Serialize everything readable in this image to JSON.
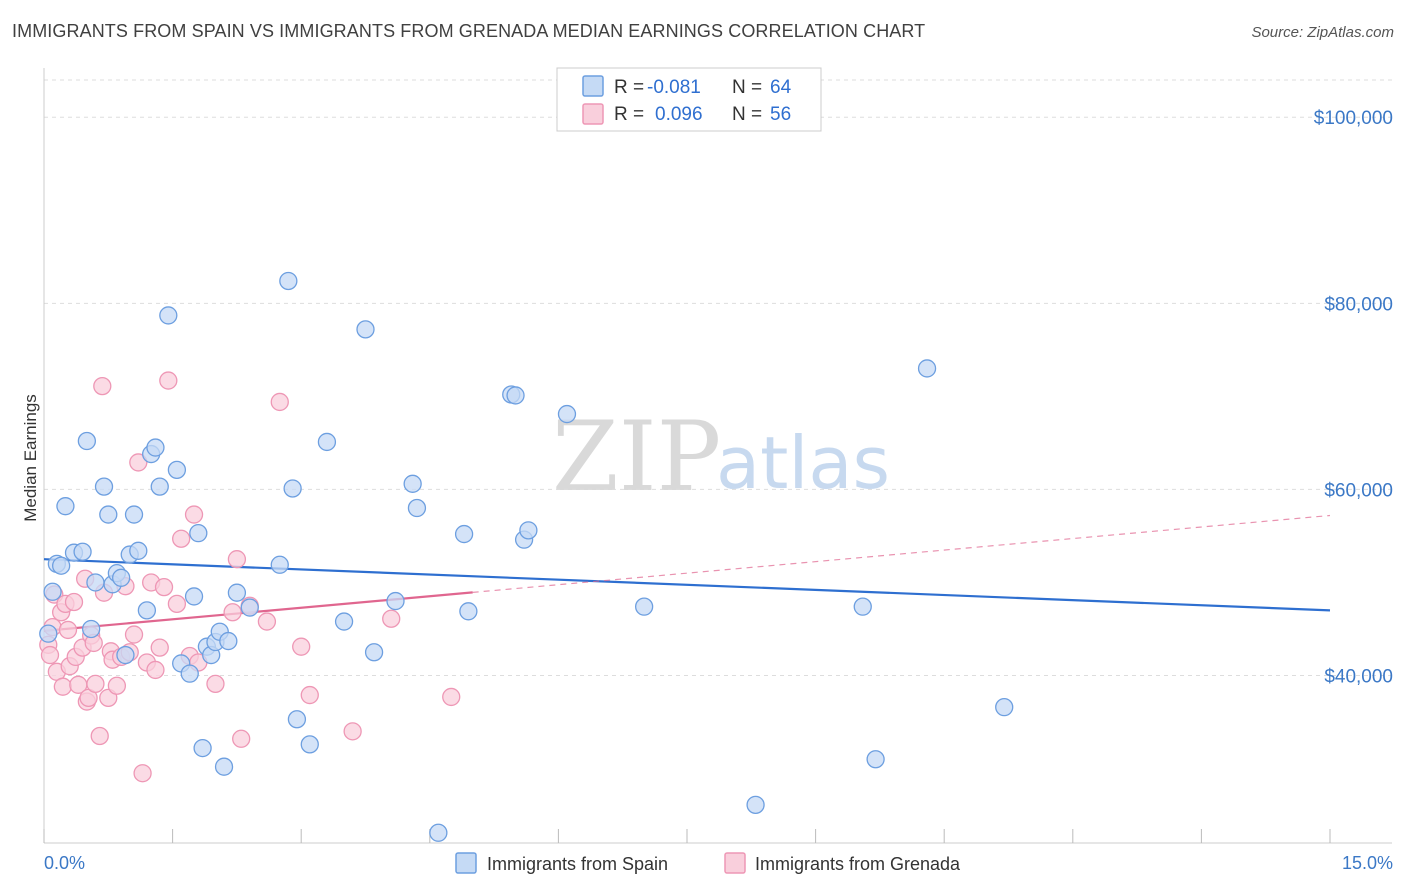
{
  "header": {
    "title": "IMMIGRANTS FROM SPAIN VS IMMIGRANTS FROM GRENADA MEDIAN EARNINGS CORRELATION CHART",
    "source": "Source: ZipAtlas.com"
  },
  "watermark": {
    "zip": "ZIP",
    "atlas": "atlas"
  },
  "legend_top": [
    {
      "r_label": "R = ",
      "r_value": "-0.081",
      "n_label": "N = ",
      "n_value": "64",
      "color": "#7aaae8"
    },
    {
      "r_label": "R = ",
      "r_value": "0.096",
      "n_label": "N = ",
      "n_value": "56",
      "color": "#f0a0bb"
    }
  ],
  "legend_bottom": [
    {
      "label": "Immigrants from Spain",
      "color": "#7aaae8"
    },
    {
      "label": "Immigrants from Grenada",
      "color": "#f0a0bb"
    }
  ],
  "colors": {
    "spain_fill": "#c5daf5",
    "spain_stroke": "#6d9fe0",
    "spain_line": "#2e6fd0",
    "grenada_fill": "#f9cfdc",
    "grenada_stroke": "#ee97b5",
    "grenada_line": "#e0668f",
    "grid": "#dddddd",
    "axis_label": "#3b78c6"
  },
  "chart_data": {
    "type": "scatter",
    "title": "IMMIGRANTS FROM SPAIN VS IMMIGRANTS FROM GRENADA MEDIAN EARNINGS CORRELATION CHART",
    "xlabel": "",
    "ylabel": "Median Earnings",
    "xlim": [
      0,
      15
    ],
    "ylim": [
      22000,
      104000
    ],
    "x_tick_labels": [
      {
        "value": 0,
        "label": "0.0%"
      },
      {
        "value": 15,
        "label": "15.0%"
      }
    ],
    "y_ticks": [
      {
        "value": 40000,
        "label": "$40,000"
      },
      {
        "value": 60000,
        "label": "$60,000"
      },
      {
        "value": 80000,
        "label": "$80,000"
      },
      {
        "value": 100000,
        "label": "$100,000"
      }
    ],
    "series": [
      {
        "name": "Immigrants from Spain",
        "r": -0.081,
        "n": 64,
        "trend": {
          "x": [
            0,
            15
          ],
          "y": [
            52500,
            47000
          ],
          "dashed_after": null
        },
        "points": [
          [
            0.05,
            44500
          ],
          [
            0.1,
            49000
          ],
          [
            0.15,
            52000
          ],
          [
            0.2,
            51800
          ],
          [
            0.25,
            58200
          ],
          [
            0.35,
            53200
          ],
          [
            0.45,
            53300
          ],
          [
            0.5,
            65200
          ],
          [
            0.55,
            45000
          ],
          [
            0.6,
            50000
          ],
          [
            0.7,
            60300
          ],
          [
            0.75,
            57300
          ],
          [
            0.8,
            49800
          ],
          [
            0.85,
            51000
          ],
          [
            0.9,
            50500
          ],
          [
            0.95,
            42200
          ],
          [
            1.0,
            53000
          ],
          [
            1.05,
            57300
          ],
          [
            1.1,
            53400
          ],
          [
            1.2,
            47000
          ],
          [
            1.25,
            63800
          ],
          [
            1.3,
            64500
          ],
          [
            1.35,
            60300
          ],
          [
            1.45,
            78700
          ],
          [
            1.55,
            62100
          ],
          [
            1.6,
            41300
          ],
          [
            1.7,
            40200
          ],
          [
            1.75,
            48500
          ],
          [
            1.8,
            55300
          ],
          [
            1.85,
            32200
          ],
          [
            1.9,
            43100
          ],
          [
            1.95,
            42200
          ],
          [
            2.0,
            43600
          ],
          [
            2.05,
            44700
          ],
          [
            2.1,
            30200
          ],
          [
            2.15,
            43700
          ],
          [
            2.25,
            48900
          ],
          [
            2.4,
            47300
          ],
          [
            2.75,
            51900
          ],
          [
            2.85,
            82400
          ],
          [
            2.9,
            60100
          ],
          [
            2.95,
            35300
          ],
          [
            3.1,
            32600
          ],
          [
            3.3,
            65100
          ],
          [
            3.5,
            45800
          ],
          [
            3.75,
            77200
          ],
          [
            3.85,
            42500
          ],
          [
            4.1,
            48000
          ],
          [
            4.3,
            60600
          ],
          [
            4.35,
            58000
          ],
          [
            4.6,
            23100
          ],
          [
            4.9,
            55200
          ],
          [
            4.95,
            46900
          ],
          [
            5.45,
            70200
          ],
          [
            5.5,
            70100
          ],
          [
            5.6,
            54600
          ],
          [
            5.65,
            55600
          ],
          [
            6.1,
            68100
          ],
          [
            7.0,
            47400
          ],
          [
            8.3,
            26100
          ],
          [
            9.55,
            47400
          ],
          [
            9.7,
            31000
          ],
          [
            10.3,
            73000
          ],
          [
            11.2,
            36600
          ]
        ]
      },
      {
        "name": "Immigrants from Grenada",
        "r": 0.096,
        "n": 56,
        "trend": {
          "x": [
            0,
            15
          ],
          "y": [
            44800,
            57200
          ],
          "solid_until": 5.0
        },
        "points": [
          [
            0.05,
            43300
          ],
          [
            0.07,
            42200
          ],
          [
            0.1,
            45200
          ],
          [
            0.12,
            48700
          ],
          [
            0.15,
            40400
          ],
          [
            0.2,
            46800
          ],
          [
            0.22,
            38800
          ],
          [
            0.25,
            47700
          ],
          [
            0.28,
            44900
          ],
          [
            0.3,
            41000
          ],
          [
            0.35,
            47900
          ],
          [
            0.37,
            42000
          ],
          [
            0.4,
            39000
          ],
          [
            0.45,
            43000
          ],
          [
            0.48,
            50400
          ],
          [
            0.5,
            37200
          ],
          [
            0.52,
            37600
          ],
          [
            0.55,
            44300
          ],
          [
            0.58,
            43500
          ],
          [
            0.6,
            39100
          ],
          [
            0.65,
            33500
          ],
          [
            0.68,
            71100
          ],
          [
            0.7,
            48900
          ],
          [
            0.75,
            37600
          ],
          [
            0.78,
            42600
          ],
          [
            0.8,
            41700
          ],
          [
            0.85,
            38900
          ],
          [
            0.9,
            42000
          ],
          [
            0.95,
            49600
          ],
          [
            1.0,
            42500
          ],
          [
            1.05,
            44400
          ],
          [
            1.1,
            62900
          ],
          [
            1.15,
            29500
          ],
          [
            1.2,
            41400
          ],
          [
            1.25,
            50000
          ],
          [
            1.3,
            40600
          ],
          [
            1.35,
            43000
          ],
          [
            1.4,
            49500
          ],
          [
            1.45,
            71700
          ],
          [
            1.55,
            47700
          ],
          [
            1.6,
            54700
          ],
          [
            1.7,
            42100
          ],
          [
            1.75,
            57300
          ],
          [
            1.8,
            41400
          ],
          [
            2.0,
            39100
          ],
          [
            2.2,
            46800
          ],
          [
            2.25,
            52500
          ],
          [
            2.3,
            33200
          ],
          [
            2.4,
            47500
          ],
          [
            2.6,
            45800
          ],
          [
            2.75,
            69400
          ],
          [
            3.0,
            43100
          ],
          [
            3.1,
            37900
          ],
          [
            3.6,
            34000
          ],
          [
            4.05,
            46100
          ],
          [
            4.75,
            37700
          ]
        ]
      }
    ],
    "grid": true,
    "legend_position": "top-center"
  }
}
